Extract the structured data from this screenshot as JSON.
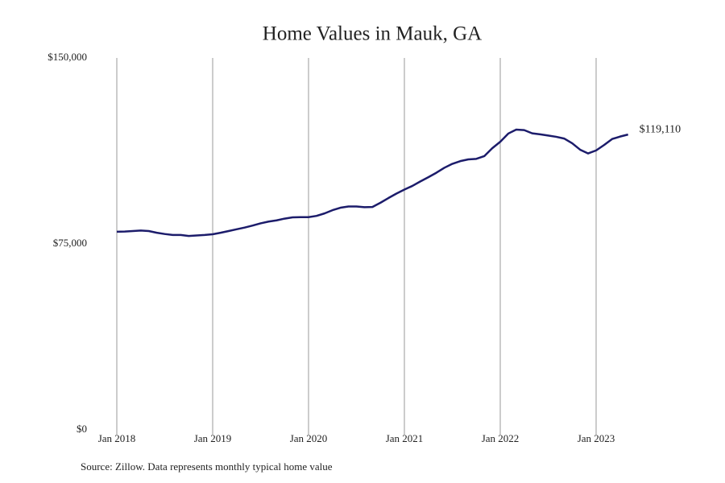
{
  "chart_data": {
    "type": "line",
    "title": "Home Values in Mauk, GA",
    "source": "Source: Zillow. Data represents monthly typical home value",
    "x": [
      "2018-01",
      "2018-02",
      "2018-03",
      "2018-04",
      "2018-05",
      "2018-06",
      "2018-07",
      "2018-08",
      "2018-09",
      "2018-10",
      "2018-11",
      "2018-12",
      "2019-01",
      "2019-02",
      "2019-03",
      "2019-04",
      "2019-05",
      "2019-06",
      "2019-07",
      "2019-08",
      "2019-09",
      "2019-10",
      "2019-11",
      "2019-12",
      "2020-01",
      "2020-02",
      "2020-03",
      "2020-04",
      "2020-05",
      "2020-06",
      "2020-07",
      "2020-08",
      "2020-09",
      "2020-10",
      "2020-11",
      "2020-12",
      "2021-01",
      "2021-02",
      "2021-03",
      "2021-04",
      "2021-05",
      "2021-06",
      "2021-07",
      "2021-08",
      "2021-09",
      "2021-10",
      "2021-11",
      "2021-12",
      "2022-01",
      "2022-02",
      "2022-03",
      "2022-04",
      "2022-05",
      "2022-06",
      "2022-07",
      "2022-08",
      "2022-09",
      "2022-10",
      "2022-11",
      "2022-12",
      "2023-01",
      "2023-02",
      "2023-03",
      "2023-04",
      "2023-05"
    ],
    "series": [
      {
        "name": "Home value",
        "color": "#1c1c6b",
        "values": [
          79900,
          80000,
          80200,
          80400,
          80200,
          79500,
          79000,
          78600,
          78600,
          78200,
          78400,
          78600,
          78900,
          79500,
          80200,
          80900,
          81600,
          82400,
          83300,
          84000,
          84500,
          85200,
          85700,
          85800,
          85800,
          86300,
          87300,
          88600,
          89600,
          90100,
          90100,
          89800,
          89900,
          91600,
          93500,
          95300,
          96900,
          98400,
          100200,
          101900,
          103700,
          105700,
          107300,
          108400,
          109100,
          109300,
          110400,
          113600,
          116200,
          119500,
          121100,
          120900,
          119600,
          119200,
          118700,
          118200,
          117500,
          115600,
          113000,
          111500,
          112700,
          114900,
          117300,
          118300,
          119110
        ],
        "value_labels": [
          null,
          null,
          null,
          null,
          null,
          null,
          null,
          null,
          null,
          null,
          null,
          null,
          null,
          null,
          null,
          null,
          null,
          null,
          null,
          null,
          null,
          null,
          null,
          null,
          null,
          null,
          null,
          null,
          null,
          null,
          null,
          null,
          null,
          null,
          null,
          null,
          null,
          null,
          null,
          null,
          null,
          null,
          null,
          null,
          null,
          null,
          null,
          null,
          null,
          null,
          null,
          null,
          null,
          null,
          null,
          null,
          null,
          null,
          null,
          null,
          null,
          null,
          null,
          null,
          "$119,110"
        ]
      }
    ],
    "ylim": [
      0,
      150000
    ],
    "yticks": [
      {
        "value": 0,
        "label": "$0"
      },
      {
        "value": 75000,
        "label": "$75,000"
      },
      {
        "value": 150000,
        "label": "$150,000"
      }
    ],
    "xticks": [
      {
        "value": "2018-01",
        "label": "Jan 2018"
      },
      {
        "value": "2019-01",
        "label": "Jan 2019"
      },
      {
        "value": "2020-01",
        "label": "Jan 2020"
      },
      {
        "value": "2021-01",
        "label": "Jan 2021"
      },
      {
        "value": "2022-01",
        "label": "Jan 2022"
      },
      {
        "value": "2023-01",
        "label": "Jan 2023"
      }
    ],
    "grid": "x"
  }
}
